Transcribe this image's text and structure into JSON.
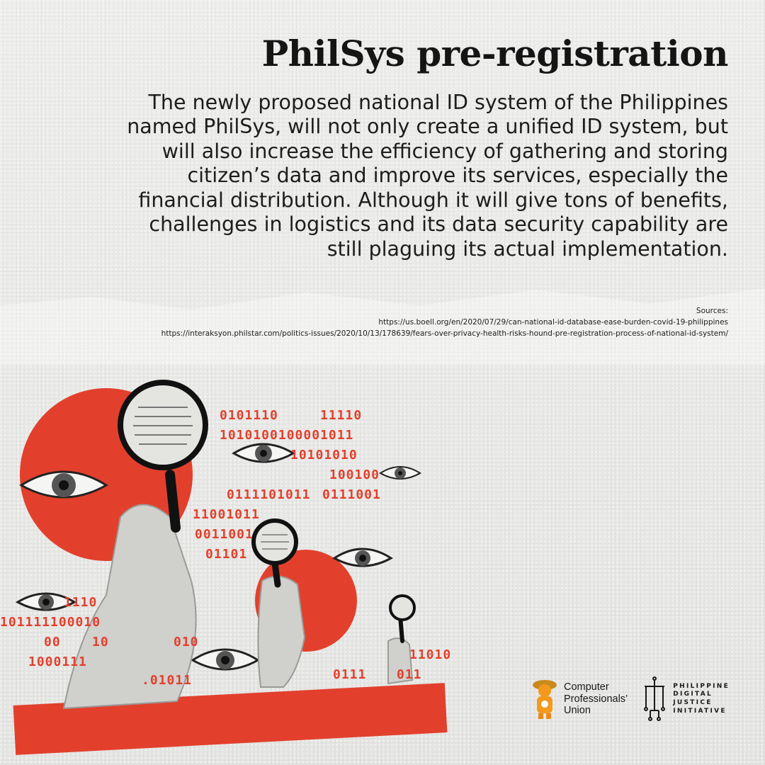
{
  "colors": {
    "accent_red": "#e2402c",
    "text": "#1d1d1d",
    "background": "#e8e8e6"
  },
  "title": "PhilSys pre-registration",
  "description": [
    "The newly proposed national ID system of the Philippines",
    "named PhilSys, will not only create a unified ID system, but",
    "will also increase the efficiency of gathering and storing",
    "citizen’s data and improve its services, especially the",
    "financial distribution. Although it will give tons of benefits,",
    "challenges in logistics and its data security capability are",
    "still plaguing its actual implementation."
  ],
  "sources": {
    "label": "Sources:",
    "links": [
      "https://us.boell.org/en/2020/07/29/can-national-id-database-ease-burden-covid-19-philippines",
      "https://interaksyon.philstar.com/politics-issues/2020/10/13/178639/fears-over-privacy-health-risks-hound-pre-registration-process-of-national-id-system/"
    ]
  },
  "binary_texts": [
    "0101110",
    "11110",
    "1010100100001011",
    "10101010",
    "100100",
    "0111101011",
    "0111001",
    "11001011",
    "0011001",
    "01101",
    "1110",
    "101111100010",
    "00",
    "10",
    "010",
    "1000111",
    ".01011",
    "0111",
    "11010",
    "011"
  ],
  "logos": {
    "cpu": {
      "line1": "Computer",
      "line2": "Professionals’",
      "line3": "Union",
      "icon": "mascot-icon"
    },
    "pdji": {
      "line1": "PHILIPPINE",
      "line2": "DIGITAL",
      "line3": "JUSTICE",
      "line4": "INITIATIVE",
      "icon": "circuit-figure-icon"
    }
  }
}
